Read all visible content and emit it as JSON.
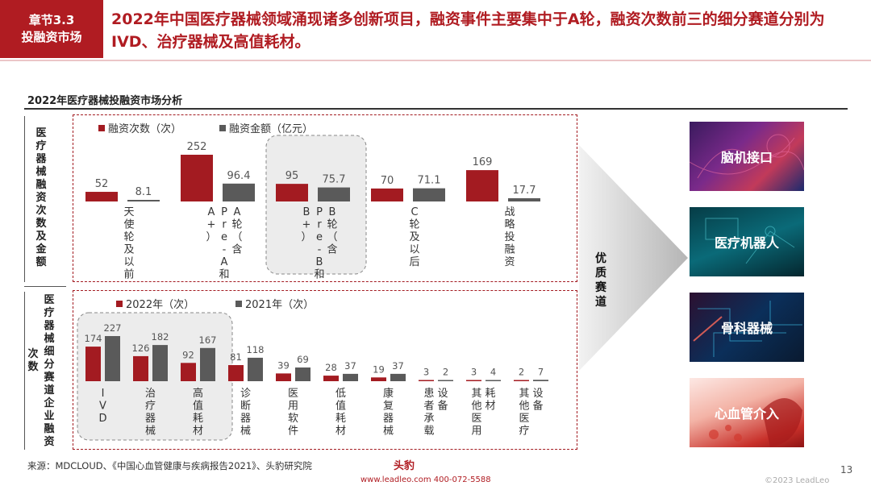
{
  "header": {
    "badge_line1": "章节3.3",
    "badge_line2": "投融资市场",
    "title": "2022年中国医疗器械领域涌现诸多创新项目，融资事件主要集中于A轮，融资次数前三的细分赛道分别为IVD、治疗器械及高值耗材。"
  },
  "chart_section_title": "2022年医疗器械投融资市场分析",
  "left_label_top": "医疗器械融资次数及金额",
  "left_label_bottom_1": "医疗器械细分赛道企业融资",
  "left_label_bottom_2": "次数",
  "priority_label": "优质赛道",
  "tiles": [
    "脑机接口",
    "医疗机器人",
    "骨科器械",
    "心血管介入"
  ],
  "source": "来源：MDCLOUD、《中国心血管健康与疾病报告2021》、头豹研究院",
  "page_number": "13",
  "footer": {
    "logo": "头豹",
    "contact": "www.leadleo.com   400-072-5588",
    "copyright": "©2023 LeadLeo"
  },
  "colors": {
    "red": "#a31b21",
    "gray": "#5a5a5a",
    "accent": "#b01c22"
  },
  "chart_data": [
    {
      "type": "bar",
      "series": [
        {
          "name": "融资次数（次）",
          "color": "#a31b21",
          "values": [
            52,
            252,
            95,
            70,
            169
          ]
        },
        {
          "name": "融资金额（亿元）",
          "color": "#5a5a5a",
          "values": [
            8.1,
            96.4,
            75.7,
            71.1,
            17.7
          ]
        }
      ],
      "categories": [
        "天使轮及以前",
        "A轮（含Pre-A和A+）",
        "B轮（含Pre-B和B+）",
        "C轮及以后",
        "战略投融资"
      ],
      "category_lines": [
        [
          "天使轮及以前"
        ],
        [
          "A轮（含",
          "Pre-A和",
          "A+）"
        ],
        [
          "B轮（含",
          "Pre-B和",
          "B+）"
        ],
        [
          "C轮及以后"
        ],
        [
          "战略投融资"
        ]
      ],
      "value_labels": [
        [
          "52",
          "252",
          "95",
          "70",
          "169"
        ],
        [
          "8.1",
          "96.4",
          "75.7",
          "71.1",
          "17.7"
        ]
      ],
      "highlight_category": 1,
      "legend": "top-left"
    },
    {
      "type": "bar",
      "series": [
        {
          "name": "2022年（次）",
          "color": "#a31b21",
          "values": [
            174,
            126,
            92,
            81,
            39,
            28,
            19,
            3,
            3,
            2
          ]
        },
        {
          "name": "2021年（次）",
          "color": "#5a5a5a",
          "values": [
            227,
            182,
            167,
            118,
            69,
            37,
            37,
            2,
            4,
            7
          ]
        }
      ],
      "categories": [
        "IVD",
        "治疗器械",
        "高值耗材",
        "诊断器械",
        "医用软件",
        "低值耗材",
        "康复器械",
        "患者承载设备",
        "其他医用耗材",
        "其他医疗设备"
      ],
      "category_lines": [
        [
          "IVD"
        ],
        [
          "治疗器械"
        ],
        [
          "高值耗材"
        ],
        [
          "诊断器械"
        ],
        [
          "医用软件"
        ],
        [
          "低值耗材"
        ],
        [
          "康复器械"
        ],
        [
          "设备",
          "患者承载"
        ],
        [
          "耗材",
          "其他医用"
        ],
        [
          "设备",
          "其他医疗"
        ]
      ],
      "highlight_categories": [
        0,
        1,
        2
      ],
      "legend": "top-left"
    }
  ]
}
